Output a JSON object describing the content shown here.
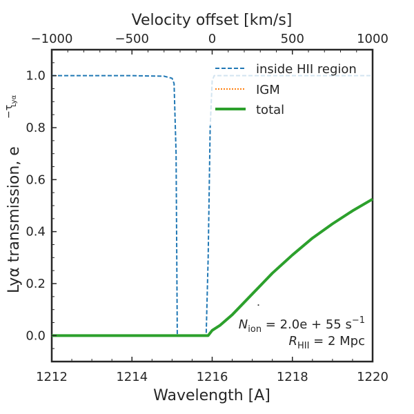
{
  "chart_data": {
    "type": "line",
    "xlabel": "Wavelength [A]",
    "ylabel_main": "Lyα transmission, e",
    "ylabel_exponent": "−τ",
    "ylabel_exponent_sub": "Lyα",
    "top_xlabel": "Velocity offset [km/s]",
    "xlim": [
      1212,
      1220
    ],
    "ylim": [
      -0.1,
      1.1
    ],
    "top_xlim": [
      -1000,
      1000
    ],
    "x_ticks": [
      "1212",
      "1214",
      "1216",
      "1218",
      "1220"
    ],
    "y_ticks": [
      "0.0",
      "0.2",
      "0.4",
      "0.6",
      "0.8",
      "1.0"
    ],
    "top_ticks": [
      "−1000",
      "−500",
      "0",
      "500",
      "1000"
    ],
    "legend_position": "top-right",
    "grid": false,
    "series": [
      {
        "name": "inside HII region",
        "color": "#1f77b4",
        "style": "dashed",
        "x": [
          1212.0,
          1214.0,
          1214.8,
          1215.0,
          1215.05,
          1215.1,
          1215.13,
          1215.18,
          1215.3,
          1215.6,
          1215.85,
          1215.9,
          1215.95,
          1216.0,
          1216.05,
          1216.2,
          1218.0,
          1220.0
        ],
        "y": [
          1.0,
          1.0,
          0.998,
          0.99,
          0.97,
          0.7,
          0.0,
          0.0,
          0.0,
          0.0,
          0.0,
          0.3,
          0.8,
          0.98,
          1.0,
          1.0,
          1.0,
          1.0
        ]
      },
      {
        "name": "IGM",
        "color": "#ff7f0e",
        "style": "dotted",
        "x": [
          1212.0,
          1215.9,
          1216.0,
          1216.2,
          1216.5,
          1217.0,
          1217.5,
          1218.0,
          1218.5,
          1219.0,
          1219.5,
          1220.0
        ],
        "y": [
          0.0,
          0.0,
          0.02,
          0.04,
          0.08,
          0.16,
          0.24,
          0.31,
          0.375,
          0.43,
          0.48,
          0.525
        ]
      },
      {
        "name": "total",
        "color": "#2ca02c",
        "style": "solid",
        "x": [
          1212.0,
          1215.9,
          1216.0,
          1216.2,
          1216.5,
          1217.0,
          1217.5,
          1218.0,
          1218.5,
          1219.0,
          1219.5,
          1220.0
        ],
        "y": [
          0.0,
          0.0,
          0.02,
          0.04,
          0.08,
          0.16,
          0.24,
          0.31,
          0.375,
          0.43,
          0.48,
          0.525
        ]
      }
    ],
    "annotation_line1": {
      "symbol": "N",
      "sub": "ion",
      "text": " = 2.0e + 55 s",
      "sup": "−1"
    },
    "annotation_line2": {
      "symbol": "R",
      "sub": "HII",
      "text": " = 2 Mpc"
    }
  }
}
